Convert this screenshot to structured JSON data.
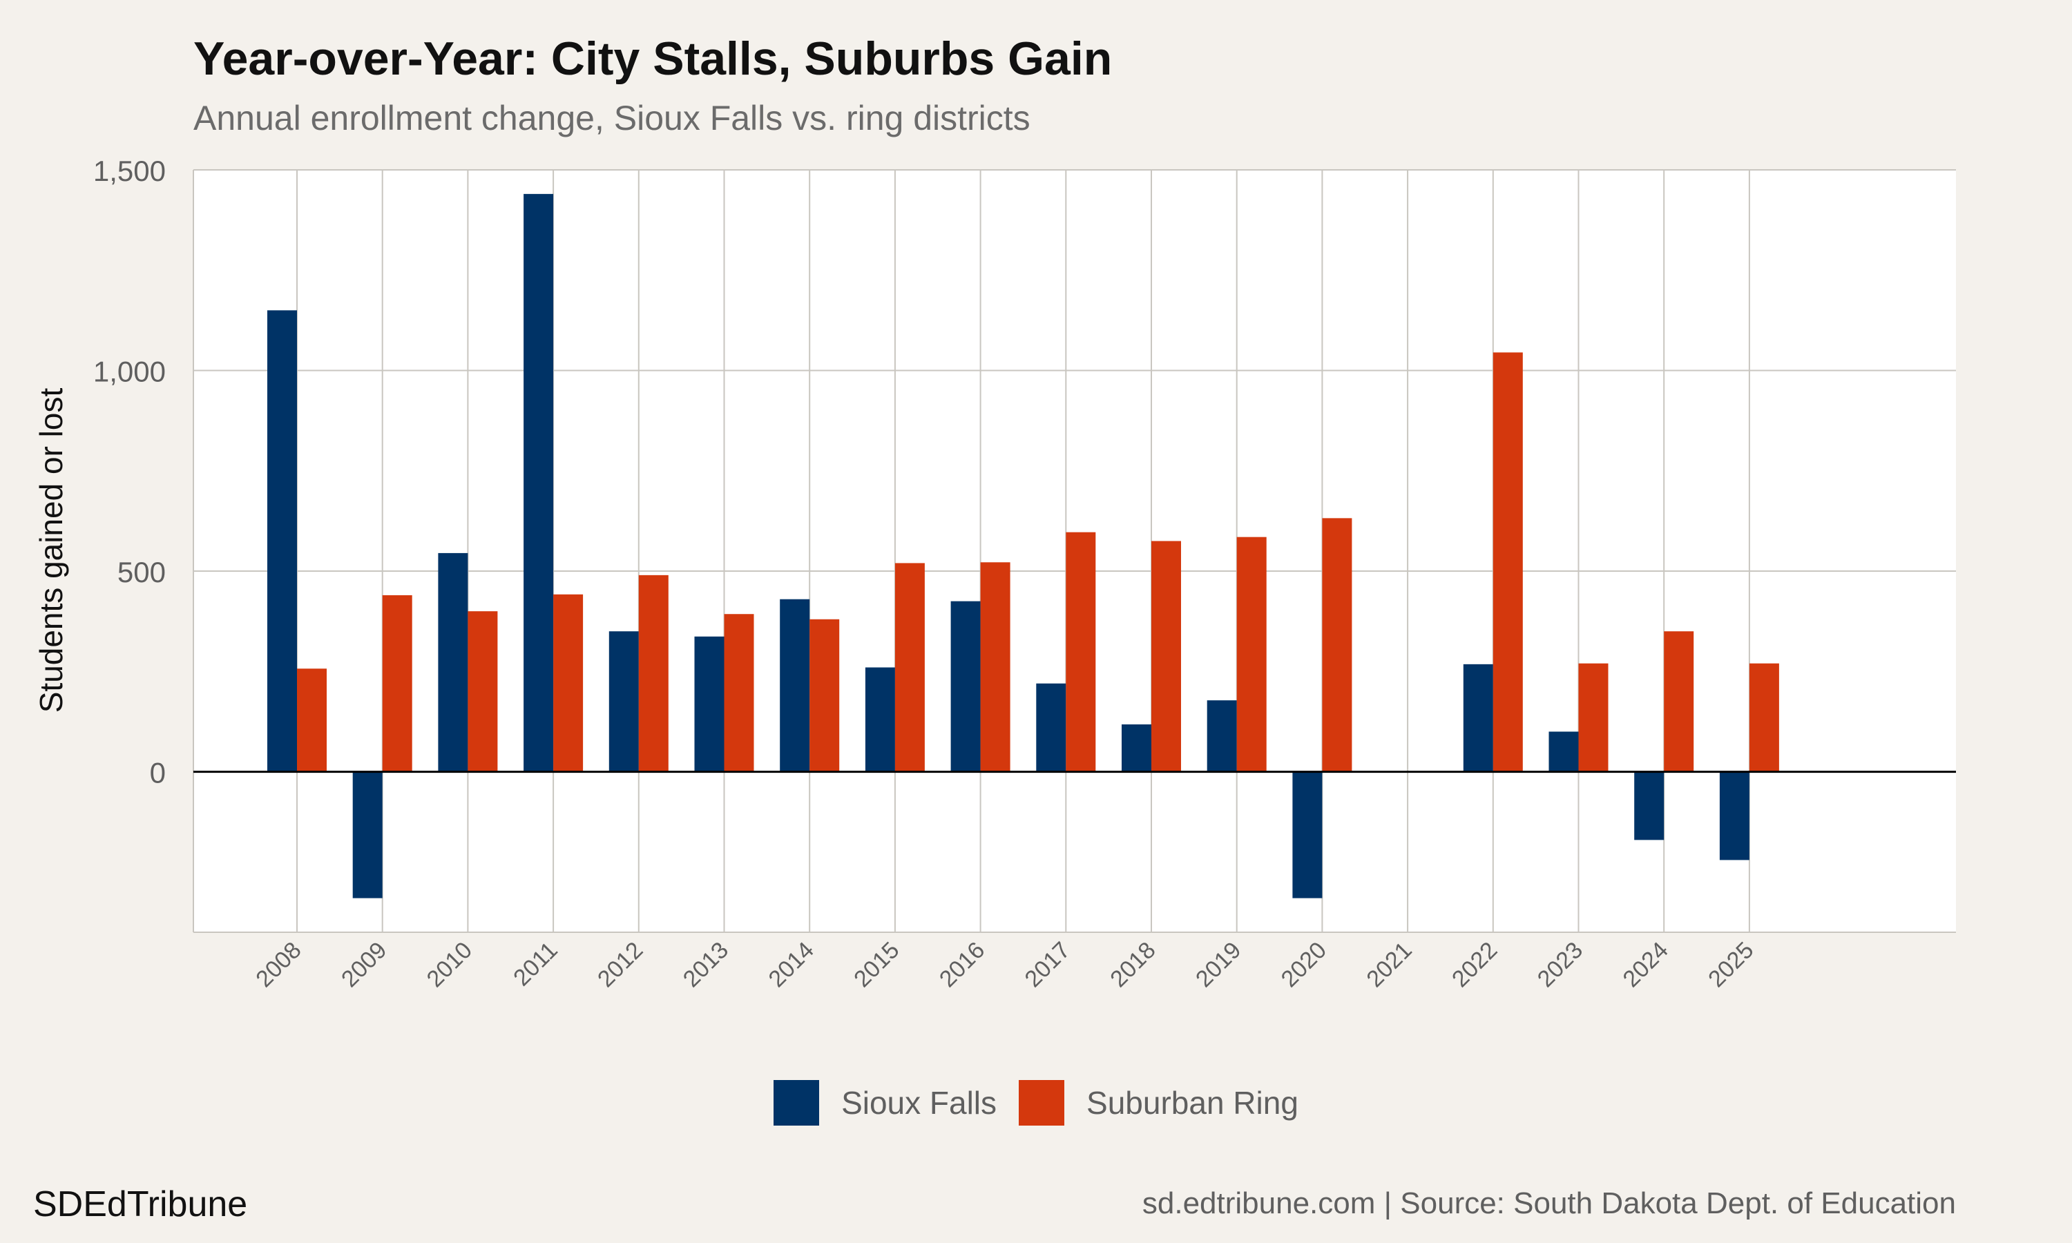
{
  "title": "Year-over-Year: City Stalls, Suburbs Gain",
  "subtitle": "Annual enrollment change, Sioux Falls vs. ring districts",
  "brand": "SDEdTribune",
  "source": "sd.edtribune.com | Source: South Dakota Dept. of Education",
  "colors": {
    "sioux_falls": "#003366",
    "suburban_ring": "#d4380d",
    "grid": "#c9c6c0",
    "zero_line": "#000000",
    "panel": "#ffffff",
    "background": "#f4f1ec"
  },
  "chart_data": {
    "type": "bar",
    "title": "Year-over-Year: City Stalls, Suburbs Gain",
    "subtitle": "Annual enrollment change, Sioux Falls vs. ring districts",
    "xlabel": "",
    "ylabel": "Students gained or lost",
    "ylim": [
      -400,
      1500
    ],
    "yticks": [
      0,
      500,
      1000,
      1500
    ],
    "ytick_labels": [
      "0",
      "500",
      "1,000",
      "1,500"
    ],
    "grid": true,
    "legend_position": "bottom",
    "categories": [
      "2008",
      "2009",
      "2010",
      "2011",
      "2012",
      "2013",
      "2014",
      "2015",
      "2016",
      "2017",
      "2018",
      "2019",
      "2020",
      "2021",
      "2022",
      "2023",
      "2024",
      "2025"
    ],
    "series": [
      {
        "name": "Sioux Falls",
        "color": "#003366",
        "values": [
          1150,
          -315,
          545,
          1440,
          350,
          337,
          430,
          260,
          425,
          220,
          118,
          178,
          -315,
          null,
          268,
          100,
          -170,
          -220
        ]
      },
      {
        "name": "Suburban Ring",
        "color": "#d4380d",
        "values": [
          257,
          440,
          400,
          442,
          490,
          393,
          380,
          520,
          522,
          597,
          575,
          585,
          632,
          null,
          1045,
          270,
          350,
          270
        ]
      }
    ]
  }
}
